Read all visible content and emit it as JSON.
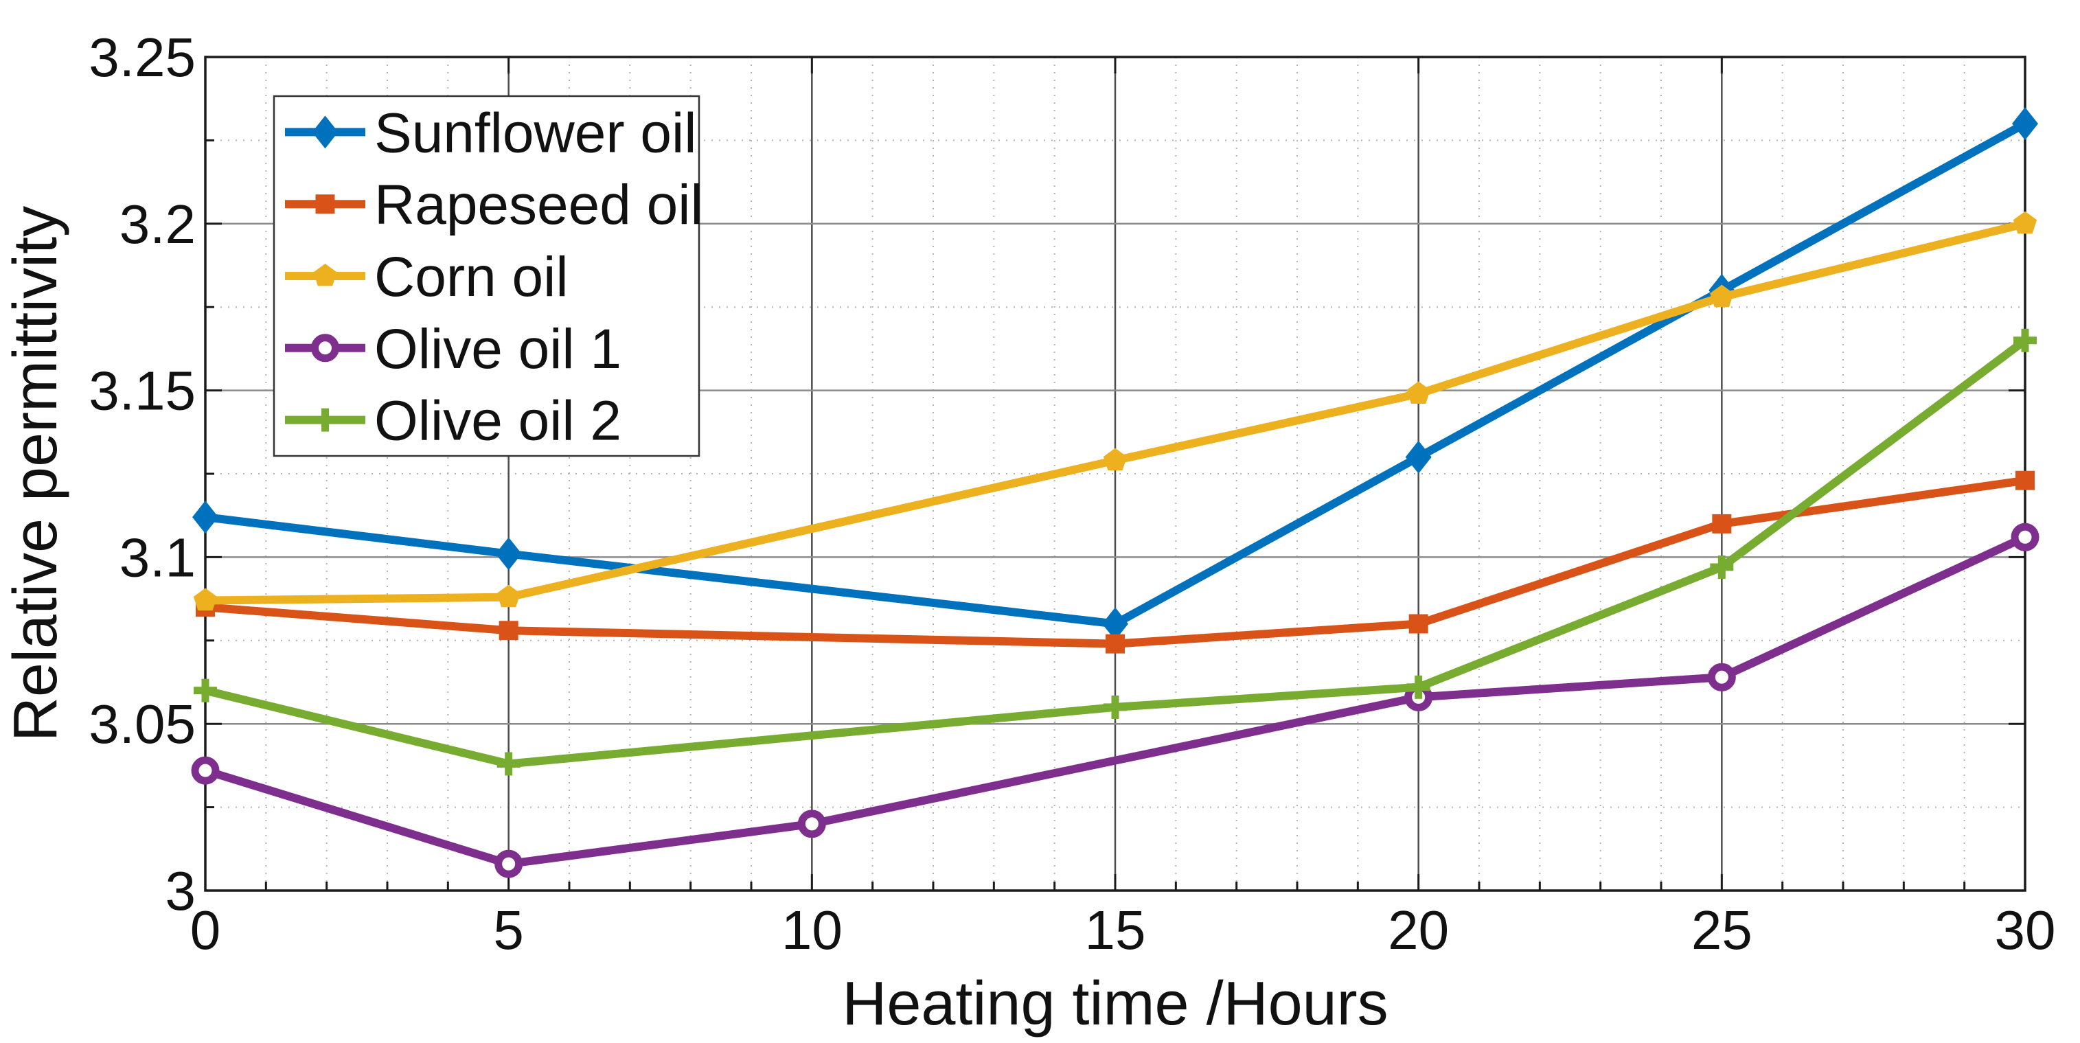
{
  "chart_data": {
    "type": "line",
    "title": "",
    "xlabel": "Heating time /Hours",
    "ylabel": "Relative permittivity",
    "xlim": [
      0,
      30
    ],
    "ylim": [
      3.0,
      3.25
    ],
    "xticks": [
      0,
      5,
      10,
      15,
      20,
      25,
      30
    ],
    "xtick_labels": [
      "0",
      "5",
      "10",
      "15",
      "20",
      "25",
      "30"
    ],
    "yticks": [
      3.0,
      3.05,
      3.1,
      3.15,
      3.2,
      3.25
    ],
    "ytick_labels": [
      "3",
      "3.05",
      "3.1",
      "3.15",
      "3.2",
      "3.25"
    ],
    "minor_x_step": 1,
    "minor_y_step": 0.025,
    "grid": true,
    "minor_grid": true,
    "legend_position": "top-left",
    "colors": {
      "axis": "#1a1a1a",
      "major_grid_vertical": "#4d4d4d",
      "major_grid_horizontal": "#8c8c8c",
      "minor_grid": "#b3b3b3",
      "legend_border": "#333333",
      "legend_background": "#ffffff",
      "text": "#111111"
    },
    "series": [
      {
        "name": "Sunflower oil",
        "color": "#0072BD",
        "marker": "diamond",
        "x": [
          0,
          5,
          15,
          20,
          25,
          30
        ],
        "y": [
          3.112,
          3.101,
          3.08,
          3.13,
          3.18,
          3.23
        ]
      },
      {
        "name": "Rapeseed oil",
        "color": "#D95319",
        "marker": "square",
        "x": [
          0,
          5,
          15,
          20,
          25,
          30
        ],
        "y": [
          3.085,
          3.078,
          3.074,
          3.08,
          3.11,
          3.123
        ]
      },
      {
        "name": "Corn oil",
        "color": "#EDB120",
        "marker": "pentagon",
        "x": [
          0,
          5,
          15,
          20,
          25,
          30
        ],
        "y": [
          3.087,
          3.088,
          3.129,
          3.149,
          3.178,
          3.2
        ]
      },
      {
        "name": "Olive oil 1",
        "color": "#7E2F8E",
        "marker": "circle-open",
        "x": [
          0,
          5,
          10,
          20,
          25,
          30
        ],
        "y": [
          3.036,
          3.008,
          3.02,
          3.058,
          3.064,
          3.106
        ]
      },
      {
        "name": "Olive oil 2",
        "color": "#77AC30",
        "marker": "plus",
        "x": [
          0,
          5,
          15,
          20,
          25,
          30
        ],
        "y": [
          3.06,
          3.038,
          3.055,
          3.061,
          3.097,
          3.165
        ]
      }
    ]
  }
}
